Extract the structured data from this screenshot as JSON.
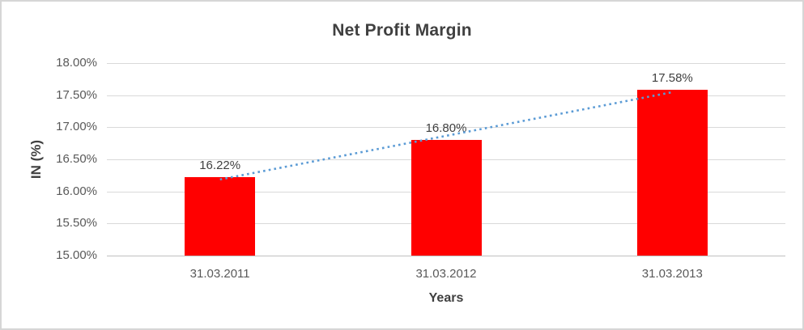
{
  "chart_data": {
    "type": "bar",
    "title": "Net Profit Margin",
    "xlabel": "Years",
    "ylabel": "IN (%)",
    "categories": [
      "31.03.2011",
      "31.03.2012",
      "31.03.2013"
    ],
    "values": [
      16.22,
      16.8,
      17.58
    ],
    "data_labels": [
      "16.22%",
      "16.80%",
      "17.58%"
    ],
    "ylim": [
      15,
      18
    ],
    "y_ticks": [
      {
        "value": 15.0,
        "label": "15.00%"
      },
      {
        "value": 15.5,
        "label": "15.50%"
      },
      {
        "value": 16.0,
        "label": "16.00%"
      },
      {
        "value": 16.5,
        "label": "16.50%"
      },
      {
        "value": 17.0,
        "label": "17.00%"
      },
      {
        "value": 17.5,
        "label": "17.50%"
      },
      {
        "value": 18.0,
        "label": "18.00%"
      }
    ],
    "grid": true,
    "legend_position": "none",
    "bar_color": "#FF0000",
    "gridline_color": "#d9d9d9",
    "axis_line_color": "#bfbfbf",
    "trendline": {
      "type": "linear",
      "style": "dotted",
      "color": "#5B9BD5"
    }
  }
}
